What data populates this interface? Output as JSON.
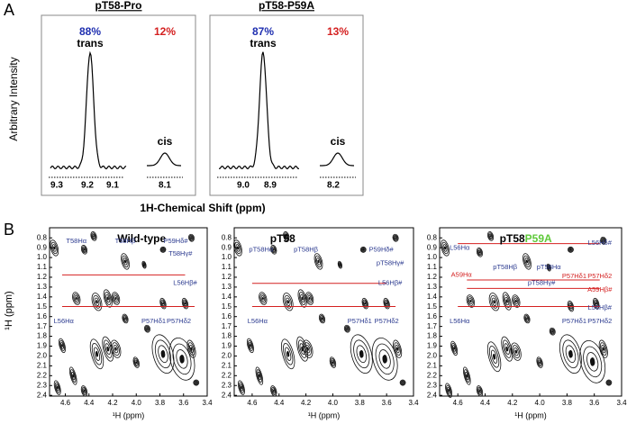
{
  "panel_a": {
    "label": "A",
    "y_label": "Arbitrary Intensity",
    "x_label": "1H-Chemical Shift (ppm)",
    "plots": [
      {
        "title": "pT58-Pro",
        "trans_pct": "88%",
        "cis_pct": "12%",
        "trans_label": "trans",
        "cis_label": "cis",
        "trans_ticks": [
          "9.3",
          "9.2",
          "9.1"
        ],
        "cis_ticks": [
          "8.1"
        ]
      },
      {
        "title": "pT58-P59A",
        "trans_pct": "87%",
        "cis_pct": "13%",
        "trans_label": "trans",
        "cis_label": "cis",
        "trans_ticks": [
          "9.0",
          "8.9"
        ],
        "cis_ticks": [
          "8.2"
        ]
      }
    ]
  },
  "panel_b": {
    "label": "B",
    "y_label": "¹H (ppm)",
    "x_label": "¹H (ppm)",
    "xticks": [
      "4.6",
      "4.4",
      "4.2",
      "4.0",
      "3.8",
      "3.6",
      "3.4"
    ],
    "yticks": [
      "0.8",
      "0.9",
      "1.0",
      "1.1",
      "1.2",
      "1.3",
      "1.4",
      "1.5",
      "1.6",
      "1.7",
      "1.8",
      "1.9",
      "2.0",
      "2.1",
      "2.2",
      "2.3",
      "2.4"
    ],
    "plots": [
      {
        "title": [
          "Wild-type"
        ],
        "annotations": [
          {
            "text": "T58Hα",
            "color": "#2b3a8f"
          },
          {
            "text": "T58Hβ",
            "color": "#2b3a8f"
          },
          {
            "text": "P59Hδ#",
            "color": "#2b3a8f"
          },
          {
            "text": "T58Hγ#",
            "color": "#2b3a8f"
          },
          {
            "text": "L56Hβ#",
            "color": "#2b3a8f"
          },
          {
            "text": "L56Hα",
            "color": "#2b3a8f"
          },
          {
            "text": "P57Hδ1",
            "color": "#2b3a8f"
          },
          {
            "text": "P57Hδ2",
            "color": "#2b3a8f"
          }
        ]
      },
      {
        "title": [
          "pT58"
        ],
        "annotations": [
          {
            "text": "pT58Hα",
            "color": "#2b3a8f"
          },
          {
            "text": "pT58Hβ",
            "color": "#2b3a8f"
          },
          {
            "text": "P59Hδ#",
            "color": "#2b3a8f"
          },
          {
            "text": "pT58Hγ#",
            "color": "#2b3a8f"
          },
          {
            "text": "L56Hβ#",
            "color": "#2b3a8f"
          },
          {
            "text": "L56Hα",
            "color": "#2b3a8f"
          },
          {
            "text": "P57Hδ1",
            "color": "#2b3a8f"
          },
          {
            "text": "P57Hδ2",
            "color": "#2b3a8f"
          }
        ]
      },
      {
        "title": [
          "pT58",
          "P59A"
        ],
        "annotations": [
          {
            "text": "L56Hα",
            "color": "#2b3a8f"
          },
          {
            "text": "L56Hδ#",
            "color": "#2b3a8f"
          },
          {
            "text": "A59Hα",
            "color": "#d42020"
          },
          {
            "text": "pT58Hβ",
            "color": "#2b3a8f"
          },
          {
            "text": "pT58Hα",
            "color": "#2b3a8f"
          },
          {
            "text": "P57Hδ1",
            "color": "#d42020"
          },
          {
            "text": "P57Hδ2",
            "color": "#d42020"
          },
          {
            "text": "pT58Hγ#",
            "color": "#2b3a8f"
          },
          {
            "text": "A59Hβ#",
            "color": "#d42020"
          },
          {
            "text": "L56Hα",
            "color": "#2b3a8f"
          },
          {
            "text": "L56Hβ#",
            "color": "#2b3a8f"
          },
          {
            "text": "P57Hδ1",
            "color": "#2b3a8f"
          },
          {
            "text": "P57Hδ2",
            "color": "#2b3a8f"
          }
        ]
      }
    ]
  }
}
